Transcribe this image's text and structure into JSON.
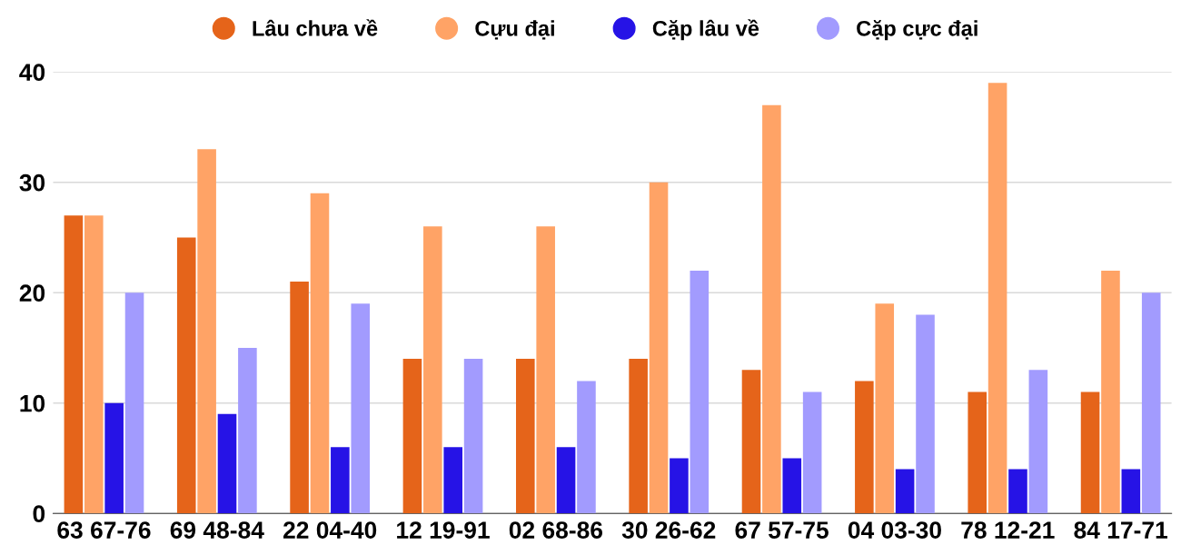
{
  "chart_data": {
    "type": "bar",
    "categories": [
      "63 67-76",
      "69 48-84",
      "22 04-40",
      "12 19-91",
      "02 68-86",
      "30 26-62",
      "67 57-75",
      "04 03-30",
      "78 12-21",
      "84 17-71"
    ],
    "series": [
      {
        "name": "Lâu chưa về",
        "color": "#e5641a",
        "values": [
          27,
          25,
          21,
          14,
          14,
          14,
          13,
          12,
          11,
          11
        ]
      },
      {
        "name": "Cựu đại",
        "color": "#ffa366",
        "values": [
          27,
          33,
          29,
          26,
          26,
          30,
          37,
          19,
          39,
          22
        ]
      },
      {
        "name": "Cặp lâu về",
        "color": "#2613e6",
        "values": [
          10,
          9,
          6,
          6,
          6,
          5,
          5,
          4,
          4,
          4
        ]
      },
      {
        "name": "Cặp cực đại",
        "color": "#a29bfe",
        "values": [
          20,
          15,
          19,
          14,
          12,
          22,
          11,
          18,
          13,
          20
        ]
      }
    ],
    "ylim": [
      0,
      40
    ],
    "yticks": [
      0,
      10,
      20,
      30,
      40
    ],
    "grid": "y",
    "legend": "top"
  }
}
